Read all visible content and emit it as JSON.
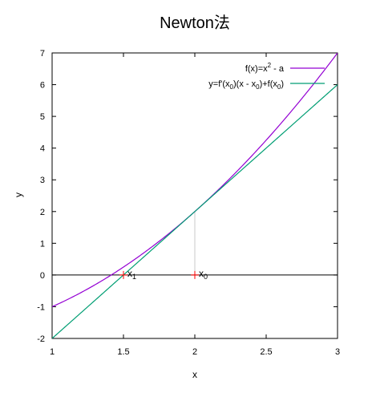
{
  "chart_data": {
    "type": "line",
    "title": "Newton法",
    "xlabel": "x",
    "ylabel": "y",
    "xlim": [
      1,
      3
    ],
    "ylim": [
      -2,
      7
    ],
    "xticks": [
      "1",
      "1.5",
      "2",
      "2.5",
      "3"
    ],
    "yticks": [
      "-2",
      "-1",
      "0",
      "1",
      "2",
      "3",
      "4",
      "5",
      "6",
      "7"
    ],
    "grid": false,
    "legend_position": "top-right",
    "series": [
      {
        "name_parts": [
          {
            "t": "f(x)=x"
          },
          {
            "t": "2",
            "sup": true
          },
          {
            "t": " - a"
          }
        ],
        "function": "x^2 - 2",
        "color": "#9400d3",
        "x": [
          1.0,
          1.25,
          1.5,
          1.75,
          2.0,
          2.25,
          2.5,
          2.75,
          3.0
        ],
        "y": [
          -1.0,
          -0.4375,
          0.25,
          1.0625,
          2.0,
          3.0625,
          4.25,
          5.5625,
          7.0
        ]
      },
      {
        "name_parts": [
          {
            "t": "y=f'(x"
          },
          {
            "t": "0",
            "sub": true
          },
          {
            "t": ")(x - x"
          },
          {
            "t": "0",
            "sub": true
          },
          {
            "t": ")+f(x"
          },
          {
            "t": "0",
            "sub": true
          },
          {
            "t": ")"
          }
        ],
        "function": "4x - 6",
        "color": "#009e73",
        "x": [
          1.0,
          3.0
        ],
        "y": [
          -2.0,
          6.0
        ]
      }
    ],
    "reference_lines": [
      {
        "kind": "horizontal",
        "y": 0,
        "color": "#000000"
      },
      {
        "kind": "vertical",
        "x": 2,
        "y_from": 0,
        "y_to": 2,
        "color": "#c8c8c8"
      }
    ],
    "points": [
      {
        "x": 1.5,
        "y": 0,
        "label": "x",
        "subscript": "1",
        "color": "#ff0000"
      },
      {
        "x": 2.0,
        "y": 0,
        "label": "x",
        "subscript": "0",
        "color": "#ff0000"
      }
    ]
  }
}
